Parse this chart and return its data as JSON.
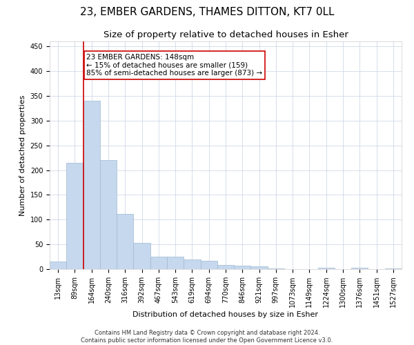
{
  "title": "23, EMBER GARDENS, THAMES DITTON, KT7 0LL",
  "subtitle": "Size of property relative to detached houses in Esher",
  "xlabel": "Distribution of detached houses by size in Esher",
  "ylabel": "Number of detached properties",
  "footer_line1": "Contains HM Land Registry data © Crown copyright and database right 2024.",
  "footer_line2": "Contains public sector information licensed under the Open Government Licence v3.0.",
  "bar_labels": [
    "13sqm",
    "89sqm",
    "164sqm",
    "240sqm",
    "316sqm",
    "392sqm",
    "467sqm",
    "543sqm",
    "619sqm",
    "694sqm",
    "770sqm",
    "846sqm",
    "921sqm",
    "997sqm",
    "1073sqm",
    "1149sqm",
    "1224sqm",
    "1300sqm",
    "1376sqm",
    "1451sqm",
    "1527sqm"
  ],
  "bar_values": [
    15,
    215,
    340,
    220,
    112,
    53,
    25,
    25,
    20,
    17,
    8,
    7,
    5,
    2,
    0,
    0,
    3,
    0,
    3,
    0,
    2
  ],
  "bar_color": "#c5d8ed",
  "bar_edgecolor": "#a0b8d0",
  "vline_x_index": 1.5,
  "annotation_line1": "23 EMBER GARDENS: 148sqm",
  "annotation_line2": "← 15% of detached houses are smaller (159)",
  "annotation_line3": "85% of semi-detached houses are larger (873) →",
  "vline_color": "#cc0000",
  "annotation_box_edgecolor": "#cc0000",
  "ylim": [
    0,
    460
  ],
  "yticks": [
    0,
    50,
    100,
    150,
    200,
    250,
    300,
    350,
    400,
    450
  ],
  "background_color": "#ffffff",
  "grid_color": "#d0d8e8",
  "title_fontsize": 11,
  "subtitle_fontsize": 9.5,
  "axis_label_fontsize": 8,
  "tick_fontsize": 7,
  "footer_fontsize": 6,
  "annotation_fontsize": 7.5
}
